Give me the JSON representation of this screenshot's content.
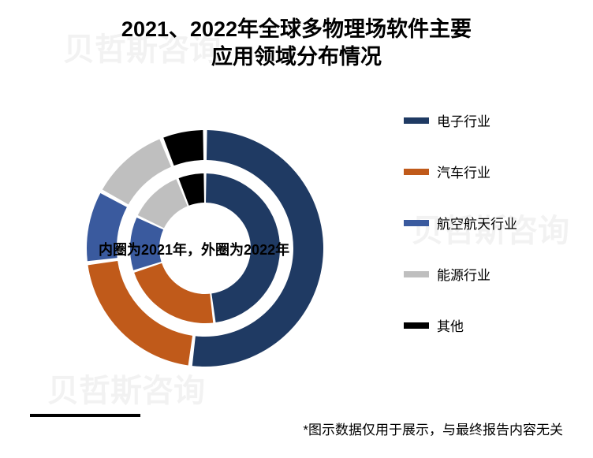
{
  "title_line1": "2021、2022年全球多物理场软件主要",
  "title_line2": "应用领域分布情况",
  "title_fontsize": 27,
  "chart": {
    "type": "nested-donut",
    "inner_year": 2021,
    "outer_year": 2022,
    "categories": [
      "电子行业",
      "汽车行业",
      "航空航天行业",
      "能源行业",
      "其他"
    ],
    "inner_values": [
      48,
      22,
      12,
      12,
      6
    ],
    "outer_values": [
      52,
      21,
      10,
      11,
      6
    ],
    "colors": [
      "#1f3a63",
      "#c05a1a",
      "#3a5a9e",
      "#bfbfbf",
      "#000000"
    ],
    "gap_color": "#ffffff",
    "gap_degrees": 2,
    "background_color": "#ffffff",
    "outer_radius": 150,
    "outer_inner_radius": 112,
    "inner_radius_outer": 95,
    "inner_radius_inner": 58,
    "rotation_start_deg": -90
  },
  "annotation_text": "内圈为2021年，外圈为2022年",
  "annotation_fontsize": 18,
  "legend": {
    "items": [
      {
        "label": "电子行业",
        "color": "#1f3a63"
      },
      {
        "label": "汽车行业",
        "color": "#c05a1a"
      },
      {
        "label": "航空航天行业",
        "color": "#3a5a9e"
      },
      {
        "label": "能源行业",
        "color": "#bfbfbf"
      },
      {
        "label": "其他",
        "color": "#000000"
      }
    ],
    "label_fontsize": 17
  },
  "footer_note": "*图示数据仅用于展示，与最终报告内容无关",
  "footer_fontsize": 17,
  "watermark_text": "贝哲斯咨询"
}
